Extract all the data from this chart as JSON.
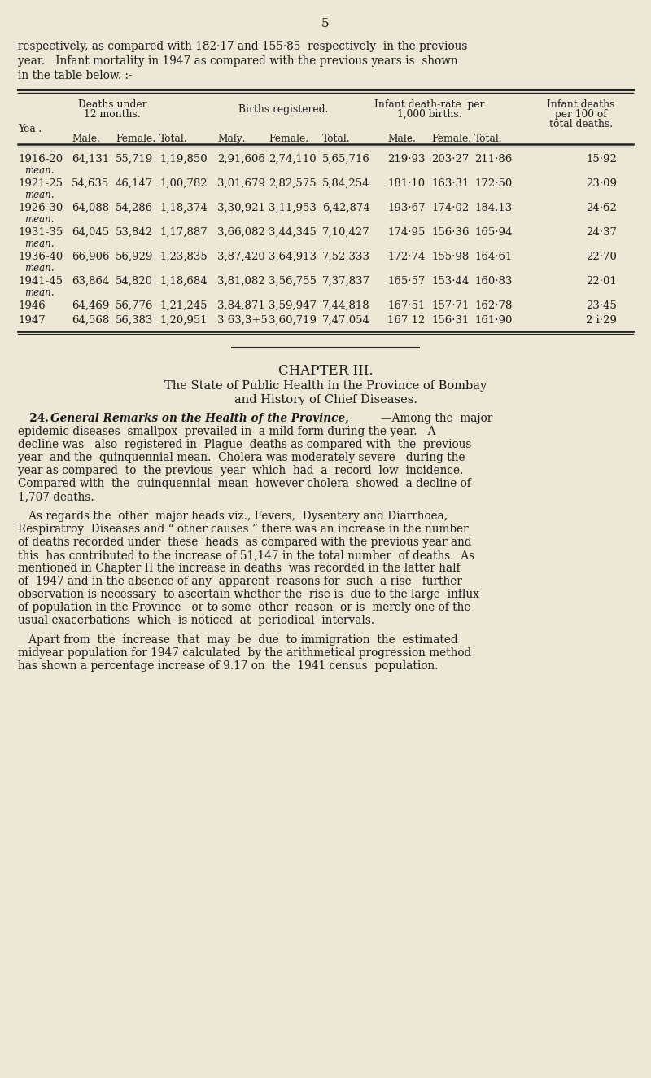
{
  "page_number": "5",
  "intro_text_lines": [
    "respectively, as compared with 182·17 and 155·85  respectively  in the previous",
    "year.   Infant mortality in 1947 as compared with the previous years is  shown",
    "in the table below. :-"
  ],
  "table_rows": [
    {
      "year": "1916-20",
      "sub": "mean.",
      "male_d": "64,131",
      "female_d": "55,719",
      "total_d": "1,19,850",
      "male_b": "2,91,606",
      "female_b": "2,74,110",
      "total_b": "5,65,716",
      "male_r": "219·93",
      "female_r": "203·27",
      "total_r": "211·86",
      "infant_100": "15·92"
    },
    {
      "year": "1921-25",
      "sub": "mean.",
      "male_d": "54,635",
      "female_d": "46,147",
      "total_d": "1,00,782",
      "male_b": "3,01,679",
      "female_b": "2,82,575",
      "total_b": "5,84,254",
      "male_r": "181·10",
      "female_r": "163·31",
      "total_r": "172·50",
      "infant_100": "23·09"
    },
    {
      "year": "1926-30",
      "sub": "mean.",
      "male_d": "64,088",
      "female_d": "54,286",
      "total_d": "1,18,374",
      "male_b": "3,30,921",
      "female_b": "3,11,953",
      "total_b": "6,42,874",
      "male_r": "193·67",
      "female_r": "174·02",
      "total_r": "184.13",
      "infant_100": "24·62"
    },
    {
      "year": "1931-35",
      "sub": "mean.",
      "male_d": "64,045",
      "female_d": "53,842",
      "total_d": "1,17,887",
      "male_b": "3,66,082",
      "female_b": "3,44,345",
      "total_b": "7,10,427",
      "male_r": "174·95",
      "female_r": "156·36",
      "total_r": "165·94",
      "infant_100": "24·37"
    },
    {
      "year": "1936-40",
      "sub": "mean.",
      "male_d": "66,906",
      "female_d": "56,929",
      "total_d": "1,23,835",
      "male_b": "3,87,420",
      "female_b": "3,64,913",
      "total_b": "7,52,333",
      "male_r": "172·74",
      "female_r": "155·98",
      "total_r": "164·61",
      "infant_100": "22·70"
    },
    {
      "year": "1941-45",
      "sub": "mean.",
      "male_d": "63,864",
      "female_d": "54,820",
      "total_d": "1,18,684",
      "male_b": "3,81,082",
      "female_b": "3,56,755",
      "total_b": "7,37,837",
      "male_r": "165·57",
      "female_r": "153·44",
      "total_r": "160·83",
      "infant_100": "22·01"
    },
    {
      "year": "1946",
      "sub": "",
      "male_d": "64,469",
      "female_d": "56,776",
      "total_d": "1,21,245",
      "male_b": "3,84,871",
      "female_b": "3,59,947",
      "total_b": "7,44,818",
      "male_r": "167·51",
      "female_r": "157·71",
      "total_r": "162·78",
      "infant_100": "23·45"
    },
    {
      "year": "1947",
      "sub": "",
      "male_d": "64,568",
      "female_d": "56,383",
      "total_d": "1,20,951",
      "male_b": "3 63,3+5",
      "female_b": "3,60,719",
      "total_b": "7,47.054",
      "male_r": "167 12",
      "female_r": "156·31",
      "total_r": "161·90",
      "infant_100": "2 i·29"
    }
  ],
  "chapter_title": "CHAPTER III.",
  "chapter_subtitle_line1": "The State of Public Health in the Province of Bombay",
  "chapter_subtitle_line2": "and History of Chief Diseases.",
  "para1_lines": [
    "   24.  General Remarks on the Health of the Province,—Among the  major",
    "epidemic diseases  smallpox  prevailed in  a mild form during the year.   A",
    "decline was   also  registered in  Plague  deaths as compared with  the  previous",
    "year  and the  quinquennial mean.  Cholera was moderately severe   during the",
    "year as compared  to  the previous  year  which  had  a  record  low  incidence.",
    "Compared with  the  quinquennial  mean  however cholera  showed  a decline of",
    "1,707 deaths."
  ],
  "para2_lines": [
    "   As regards the  other  major heads viz., Fevers,  Dysentery and Diarrhoea,",
    "Respiratroy  Diseases and “ other causes ” there was an increase in the number",
    "of deaths recorded under  these  heads  as compared with the previous year and",
    "this  has contributed to the increase of 51,147 in the total number  of deaths.  As",
    "mentioned in Chapter II the increase in deaths  was recorded in the latter half",
    "of  1947 and in the absence of any  apparent  reasons for  such  a rise   further",
    "observation is necessary  to ascertain whether the  rise is  due to the large  influx",
    "of population in the Province   or to some  other  reason  or is  merely one of the",
    "usual exacerbations  which  is noticed  at  periodical  intervals."
  ],
  "para3_lines": [
    "   Apart from  the  increase  that  may  be  due  to immigration  the  estimated",
    "midyear population for 1947 calculated  by the arithmetical progression method",
    "has shown a percentage increase of 9.17 on  the  1941 census  population."
  ],
  "bg_color": "#ede8d5",
  "text_color": "#1a1a1a",
  "line_color": "#222222"
}
